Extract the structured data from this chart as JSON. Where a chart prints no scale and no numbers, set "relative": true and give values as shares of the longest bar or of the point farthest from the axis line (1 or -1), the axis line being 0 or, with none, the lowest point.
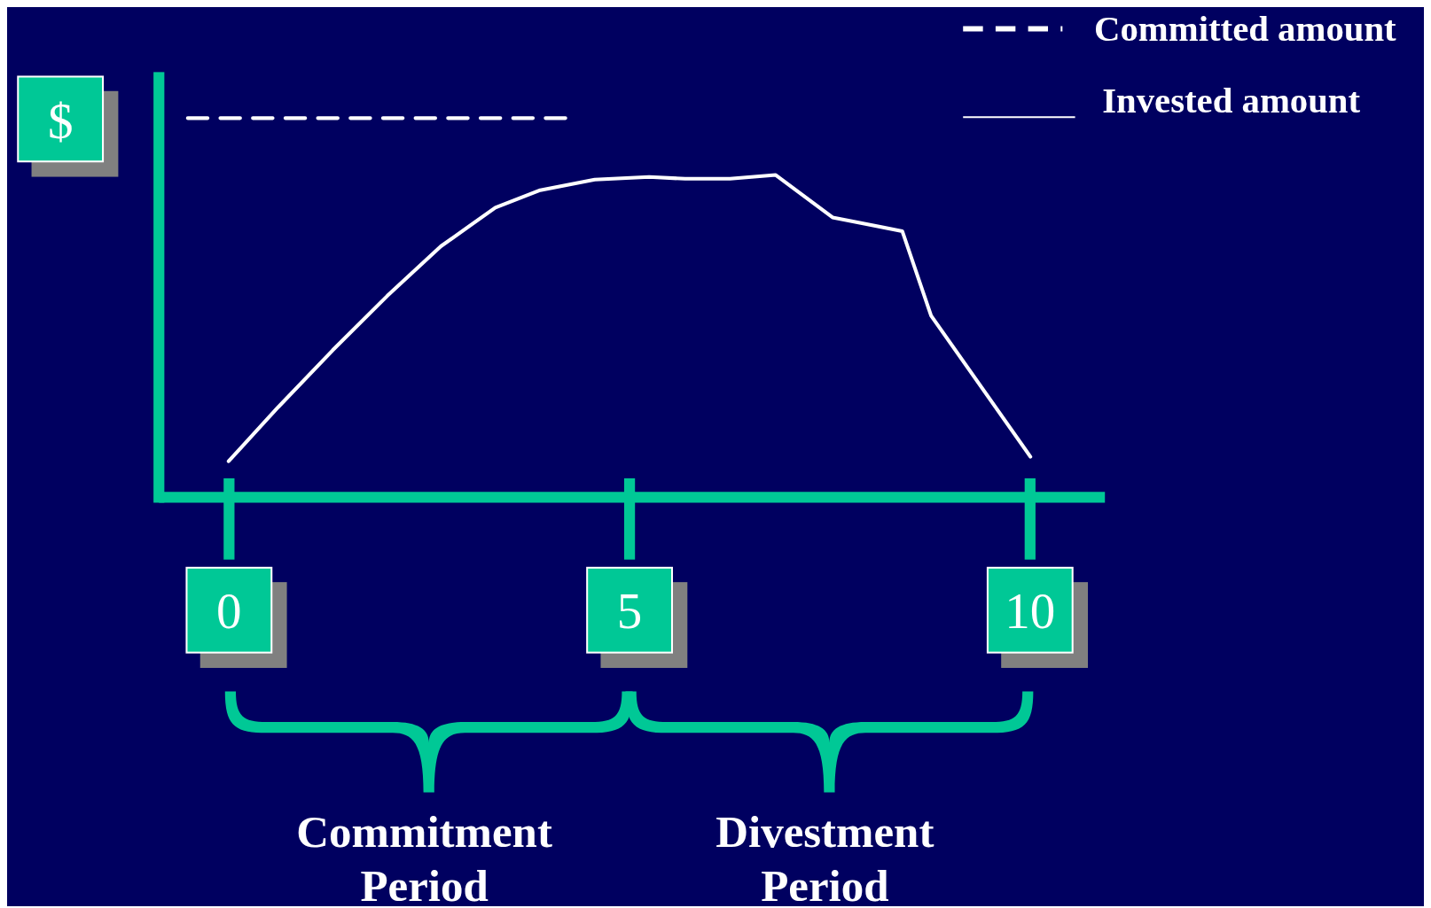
{
  "chart_data": {
    "type": "line",
    "relative": true,
    "ylabel": "$",
    "xlim": [
      -0.87,
      10.94
    ],
    "xticks": [
      0,
      5,
      10
    ],
    "legend": "top right",
    "grid": false,
    "marker": "none",
    "series": [
      {
        "name": "Committed amount",
        "color": "#ffffff",
        "line_style": "dashed",
        "x": [
          -0.51,
          4.23
        ],
        "values": [
          1,
          1
        ]
      },
      {
        "name": "Invested amount",
        "color": "#ffffff",
        "line_style": "solid",
        "x": [
          0,
          0.62,
          1.3,
          1.98,
          2.65,
          3.33,
          3.89,
          4.57,
          5.25,
          5.7,
          6.26,
          6.83,
          7.54,
          8.41,
          8.77,
          10.01
        ],
        "values": [
          0.095,
          0.238,
          0.388,
          0.531,
          0.662,
          0.764,
          0.81,
          0.838,
          0.845,
          0.84,
          0.84,
          0.85,
          0.738,
          0.702,
          0.479,
          0.107
        ]
      }
    ],
    "annotations": [
      "Commitment Period",
      "Divestment Period"
    ]
  }
}
